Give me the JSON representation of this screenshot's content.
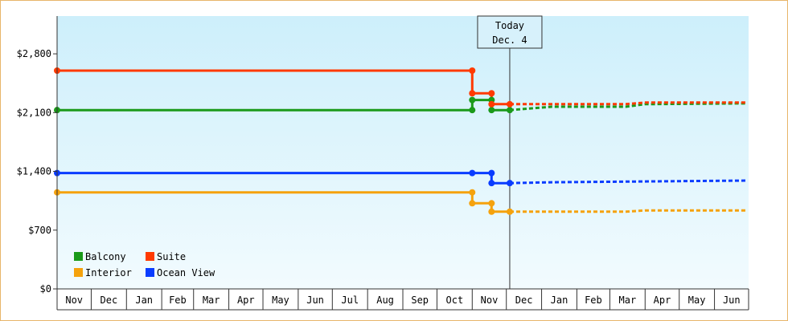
{
  "chart_data": {
    "type": "line",
    "title": "",
    "xlabel": "",
    "ylabel": "",
    "y_ticks": [
      "$0",
      "$700",
      "$1,400",
      "$2,100",
      "$2,800"
    ],
    "y_tick_values": [
      0,
      700,
      1400,
      2100,
      2800
    ],
    "ylim": [
      0,
      3250
    ],
    "grid": false,
    "legend_position": "bottom-left",
    "x_months": [
      "Nov",
      "Dec",
      "Jan",
      "Feb",
      "Mar",
      "Apr",
      "May",
      "Jun",
      "Jul",
      "Aug",
      "Sep",
      "Oct",
      "Nov",
      "Dec",
      "Jan",
      "Feb",
      "Mar",
      "Apr",
      "May",
      "Jun"
    ],
    "today_marker": {
      "line1": "Today",
      "line2": "Dec. 4"
    },
    "series": [
      {
        "name": "Balcony",
        "color": "#1a9a1a",
        "history": [
          {
            "x": "2014-11-01",
            "y": 2130
          },
          {
            "x": "2015-11-01",
            "y": 2130
          },
          {
            "x": "2015-11-01",
            "y": 2250
          },
          {
            "x": "2015-11-18",
            "y": 2250
          },
          {
            "x": "2015-11-18",
            "y": 2130
          },
          {
            "x": "2015-12-04",
            "y": 2130
          }
        ],
        "forecast": [
          {
            "x": "2015-12-04",
            "y": 2130
          },
          {
            "x": "2016-01-10",
            "y": 2170
          },
          {
            "x": "2016-03-15",
            "y": 2170
          },
          {
            "x": "2016-04-01",
            "y": 2200
          },
          {
            "x": "2016-06-30",
            "y": 2210
          }
        ]
      },
      {
        "name": "Suite",
        "color": "#ff3a00",
        "history": [
          {
            "x": "2014-11-01",
            "y": 2600
          },
          {
            "x": "2015-11-01",
            "y": 2600
          },
          {
            "x": "2015-11-01",
            "y": 2330
          },
          {
            "x": "2015-11-18",
            "y": 2330
          },
          {
            "x": "2015-11-18",
            "y": 2200
          },
          {
            "x": "2015-12-04",
            "y": 2200
          }
        ],
        "forecast": [
          {
            "x": "2015-12-04",
            "y": 2200
          },
          {
            "x": "2016-03-15",
            "y": 2200
          },
          {
            "x": "2016-04-01",
            "y": 2220
          },
          {
            "x": "2016-06-30",
            "y": 2220
          }
        ]
      },
      {
        "name": "Interior",
        "color": "#f5a20d",
        "history": [
          {
            "x": "2014-11-01",
            "y": 1150
          },
          {
            "x": "2015-11-01",
            "y": 1150
          },
          {
            "x": "2015-11-01",
            "y": 1020
          },
          {
            "x": "2015-11-18",
            "y": 1020
          },
          {
            "x": "2015-11-18",
            "y": 920
          },
          {
            "x": "2015-12-04",
            "y": 920
          }
        ],
        "forecast": [
          {
            "x": "2015-12-04",
            "y": 920
          },
          {
            "x": "2016-03-15",
            "y": 920
          },
          {
            "x": "2016-04-01",
            "y": 935
          },
          {
            "x": "2016-06-30",
            "y": 935
          }
        ]
      },
      {
        "name": "Ocean View",
        "color": "#0a3cff",
        "history": [
          {
            "x": "2014-11-01",
            "y": 1380
          },
          {
            "x": "2015-11-01",
            "y": 1380
          },
          {
            "x": "2015-11-18",
            "y": 1380
          },
          {
            "x": "2015-11-18",
            "y": 1260
          },
          {
            "x": "2015-12-04",
            "y": 1260
          }
        ],
        "forecast": [
          {
            "x": "2015-12-04",
            "y": 1260
          },
          {
            "x": "2016-01-10",
            "y": 1270
          },
          {
            "x": "2016-06-30",
            "y": 1290
          }
        ]
      }
    ]
  }
}
